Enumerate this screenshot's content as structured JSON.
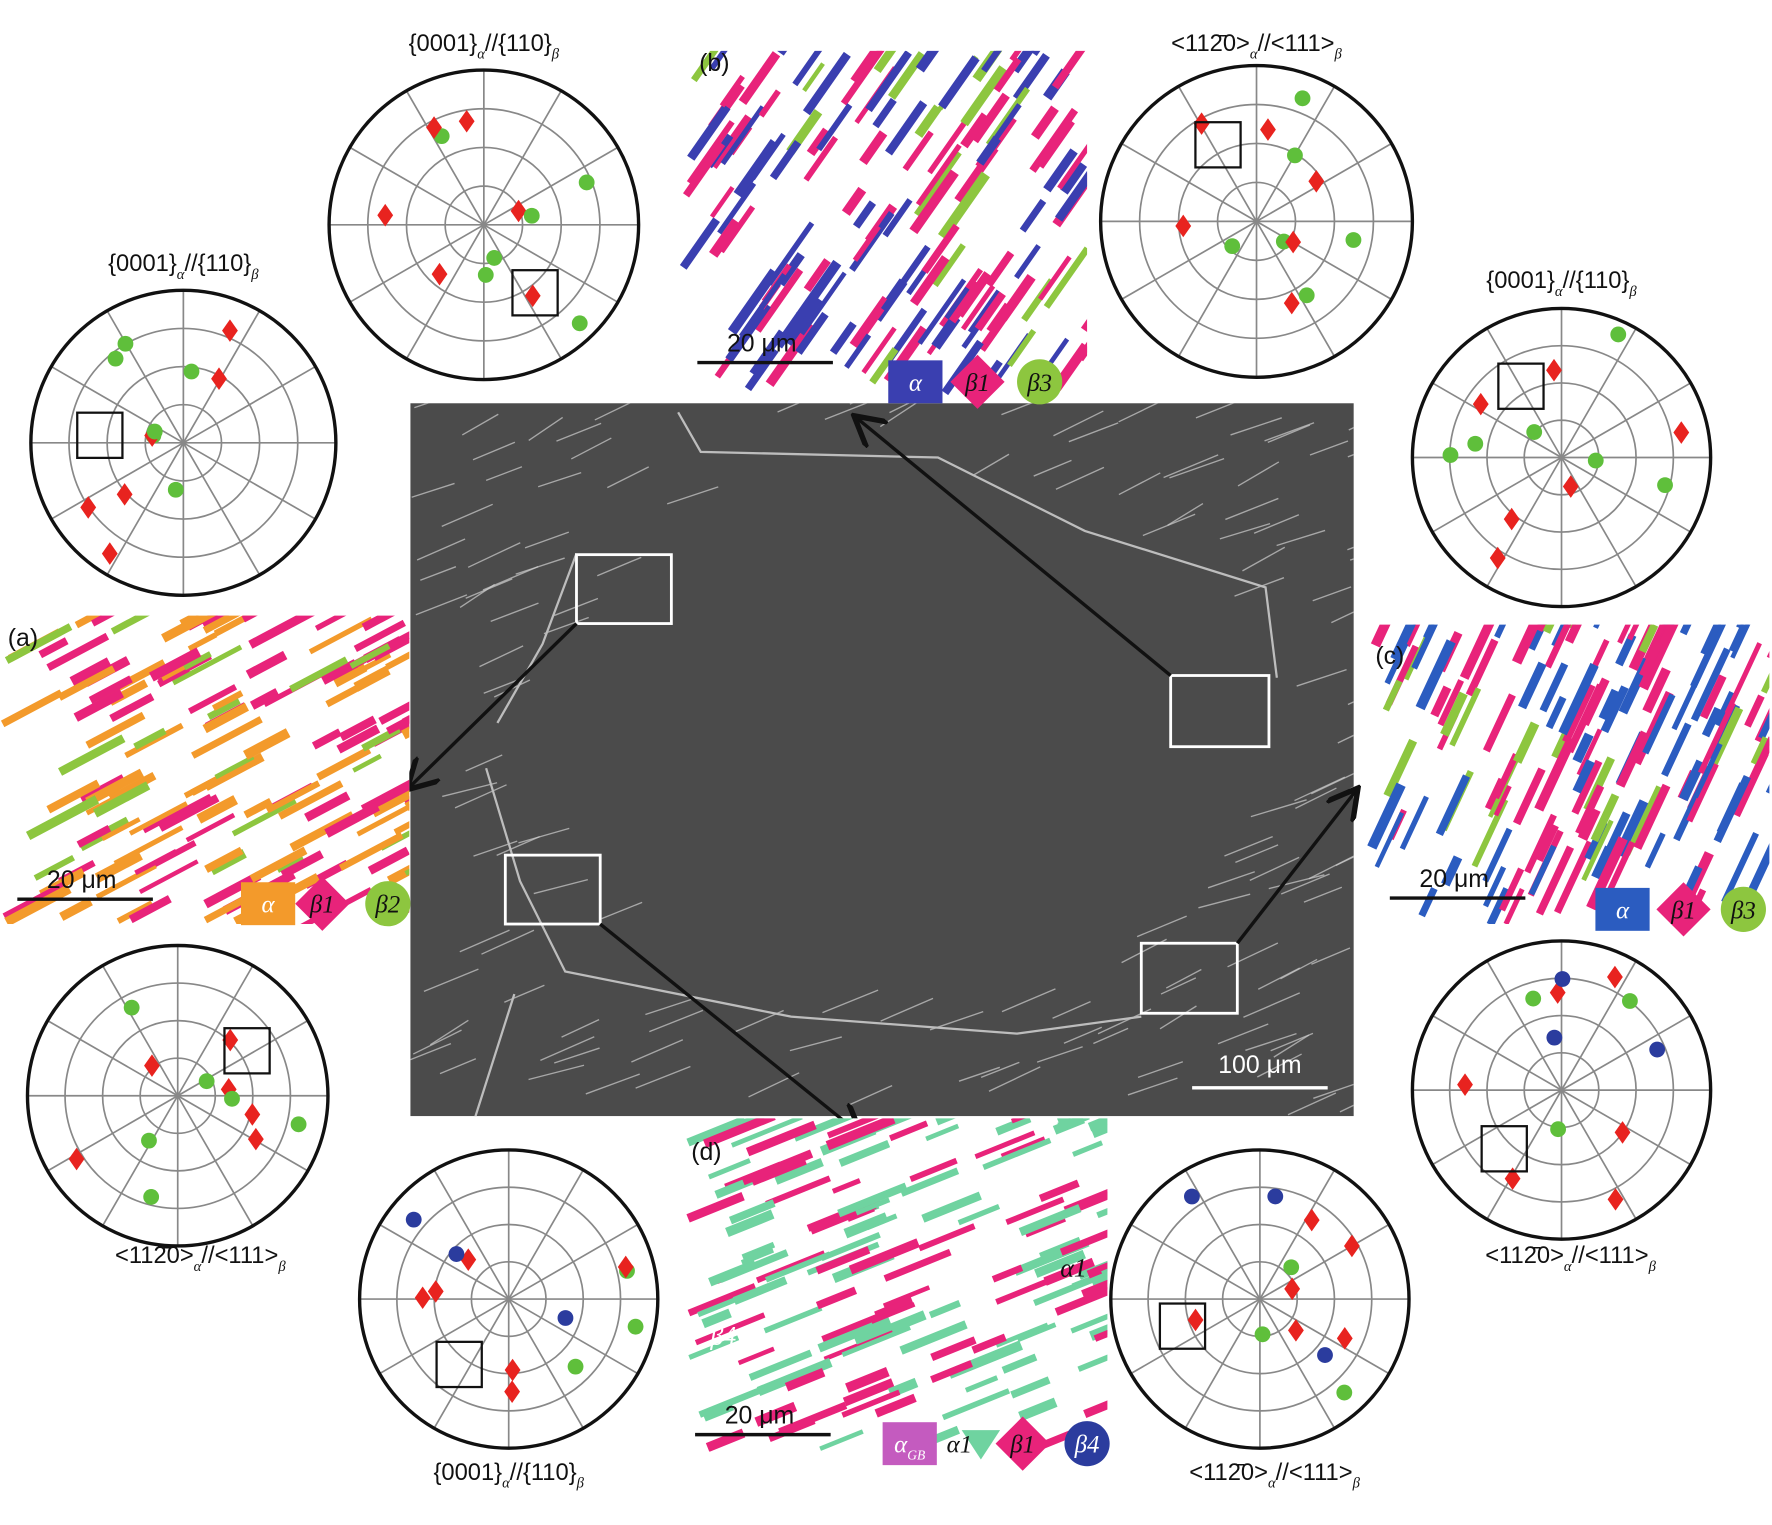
{
  "pole_figures": [
    {
      "parts": [
        "{0001}",
        "α",
        "//{110}",
        "β"
      ]
    },
    {
      "parts": [
        "{0001}",
        "α",
        "//{110}",
        "β"
      ]
    },
    {
      "parts": [
        "<112̄0>",
        "α",
        "//<111>",
        "β"
      ]
    },
    {
      "parts": [
        "{0001}",
        "α",
        "//{110}",
        "β"
      ]
    },
    {
      "parts": [
        "<112̄0>",
        "α",
        "//<111>",
        "β"
      ]
    },
    {
      "parts": [
        "{0001}",
        "α",
        "//{110}",
        "β"
      ]
    },
    {
      "parts": [
        "<112̄0>",
        "α",
        "//<111>",
        "β"
      ]
    },
    {
      "parts": [
        "<112̄0>",
        "α",
        "//<111>",
        "β"
      ]
    }
  ],
  "panels": [
    {
      "label": "(a)",
      "scale_bar": "20 μm",
      "legend": [
        {
          "text": "α"
        },
        {
          "text": "β1"
        },
        {
          "text": "β2"
        }
      ]
    },
    {
      "label": "(b)",
      "scale_bar": "20 μm",
      "legend": [
        {
          "text": "α"
        },
        {
          "text": "β1"
        },
        {
          "text": "β3"
        }
      ]
    },
    {
      "label": "(c)",
      "scale_bar": "20 μm",
      "legend": [
        {
          "text": "α"
        },
        {
          "text": "β1"
        },
        {
          "text": "β3"
        }
      ]
    },
    {
      "label": "(d)",
      "scale_bar": "20 μm",
      "legend": [
        {
          "text": "α",
          "sub": "GB"
        },
        {
          "text": "α1"
        },
        {
          "text": "β1"
        },
        {
          "text": "β4"
        }
      ]
    }
  ],
  "micrograph": {
    "scale_bar": "100 μm"
  },
  "panel_d_labels": [
    "α1",
    "β1",
    "β4"
  ]
}
